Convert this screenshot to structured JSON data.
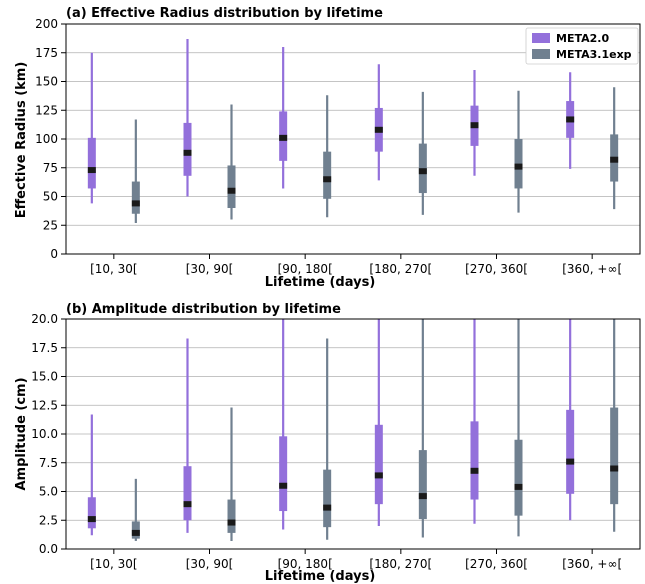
{
  "chart_data": [
    {
      "type": "boxplot",
      "title": "(a) Effective Radius distribution by lifetime",
      "xlabel": "Lifetime (days)",
      "ylabel": "Effective Radius (km)",
      "ylim": [
        0,
        200
      ],
      "yticks": [
        "0",
        "25",
        "50",
        "75",
        "100",
        "125",
        "150",
        "175",
        "200"
      ],
      "categories": [
        "[10, 30[",
        "[30, 90[",
        "[90, 180[",
        "[180, 270[",
        "[270, 360[",
        "[360, +∞["
      ],
      "legend": {
        "position": "top-right"
      },
      "grid": true,
      "series": [
        {
          "name": "META2.0",
          "color": "#9370DB",
          "stats": [
            {
              "whislo": 44,
              "q1": 57,
              "median": 73,
              "q3": 101,
              "whishi": 175
            },
            {
              "whislo": 50,
              "q1": 68,
              "median": 88,
              "q3": 114,
              "whishi": 187
            },
            {
              "whislo": 57,
              "q1": 81,
              "median": 101,
              "q3": 124,
              "whishi": 180
            },
            {
              "whislo": 64,
              "q1": 89,
              "median": 108,
              "q3": 127,
              "whishi": 165
            },
            {
              "whislo": 68,
              "q1": 94,
              "median": 112,
              "q3": 129,
              "whishi": 160
            },
            {
              "whislo": 74,
              "q1": 101,
              "median": 117,
              "q3": 133,
              "whishi": 158
            }
          ]
        },
        {
          "name": "META3.1exp",
          "color": "#708090",
          "stats": [
            {
              "whislo": 27,
              "q1": 35,
              "median": 44,
              "q3": 63,
              "whishi": 117
            },
            {
              "whislo": 30,
              "q1": 40,
              "median": 55,
              "q3": 77,
              "whishi": 130
            },
            {
              "whislo": 32,
              "q1": 48,
              "median": 65,
              "q3": 89,
              "whishi": 138
            },
            {
              "whislo": 34,
              "q1": 53,
              "median": 72,
              "q3": 96,
              "whishi": 141
            },
            {
              "whislo": 36,
              "q1": 57,
              "median": 76,
              "q3": 100,
              "whishi": 142
            },
            {
              "whislo": 39,
              "q1": 63,
              "median": 82,
              "q3": 104,
              "whishi": 145
            }
          ]
        }
      ]
    },
    {
      "type": "boxplot",
      "title": "(b) Amplitude distribution by lifetime",
      "xlabel": "Lifetime (days)",
      "ylabel": "Amplitude (cm)",
      "ylim": [
        0,
        20
      ],
      "yticks": [
        "0.0",
        "2.5",
        "5.0",
        "7.5",
        "10.0",
        "12.5",
        "15.0",
        "17.5",
        "20.0"
      ],
      "categories": [
        "[10, 30[",
        "[30, 90[",
        "[90, 180[",
        "[180, 270[",
        "[270, 360[",
        "[360, +∞["
      ],
      "grid": true,
      "series": [
        {
          "name": "META2.0",
          "color": "#9370DB",
          "stats": [
            {
              "whislo": 1.2,
              "q1": 1.8,
              "median": 2.6,
              "q3": 4.5,
              "whishi": 11.7
            },
            {
              "whislo": 1.4,
              "q1": 2.5,
              "median": 3.9,
              "q3": 7.2,
              "whishi": 18.3
            },
            {
              "whislo": 1.7,
              "q1": 3.3,
              "median": 5.5,
              "q3": 9.8,
              "whishi": 20.0
            },
            {
              "whislo": 2.0,
              "q1": 3.9,
              "median": 6.4,
              "q3": 10.8,
              "whishi": 20.0
            },
            {
              "whislo": 2.2,
              "q1": 4.3,
              "median": 6.8,
              "q3": 11.1,
              "whishi": 20.0
            },
            {
              "whislo": 2.5,
              "q1": 4.8,
              "median": 7.6,
              "q3": 12.1,
              "whishi": 20.0
            }
          ]
        },
        {
          "name": "META3.1exp",
          "color": "#708090",
          "stats": [
            {
              "whislo": 0.7,
              "q1": 0.9,
              "median": 1.4,
              "q3": 2.4,
              "whishi": 6.1
            },
            {
              "whislo": 0.7,
              "q1": 1.4,
              "median": 2.3,
              "q3": 4.3,
              "whishi": 12.3
            },
            {
              "whislo": 0.8,
              "q1": 1.9,
              "median": 3.6,
              "q3": 6.9,
              "whishi": 18.3
            },
            {
              "whislo": 1.0,
              "q1": 2.6,
              "median": 4.6,
              "q3": 8.6,
              "whishi": 20.0
            },
            {
              "whislo": 1.1,
              "q1": 2.9,
              "median": 5.4,
              "q3": 9.5,
              "whishi": 20.0
            },
            {
              "whislo": 1.5,
              "q1": 3.9,
              "median": 7.0,
              "q3": 12.3,
              "whishi": 20.0
            }
          ]
        }
      ]
    }
  ]
}
